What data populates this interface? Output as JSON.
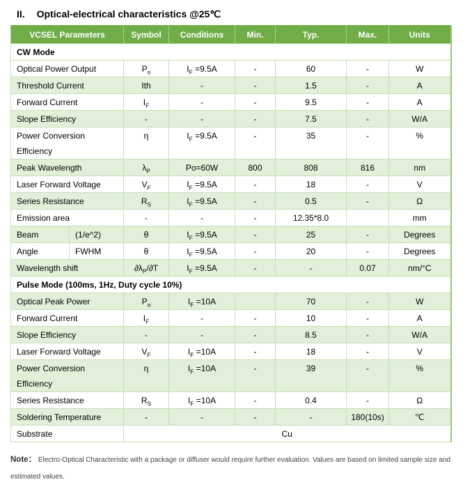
{
  "title": {
    "numeral": "II.",
    "text": "Optical-electrical characteristics @25℃"
  },
  "colors": {
    "header_bg": "#71ad47",
    "header_text": "#ffffff",
    "row_shade": "#e2efd9",
    "border": "#c5e0b4",
    "note_text": "#3f3f3f"
  },
  "table": {
    "type": "table",
    "columns": [
      {
        "label": "VCSEL Parameters"
      },
      {
        "label": "Symbol"
      },
      {
        "label": "Conditions"
      },
      {
        "label": "Min."
      },
      {
        "label": "Typ."
      },
      {
        "label": "Max."
      },
      {
        "label": "Units"
      }
    ],
    "rows": [
      {
        "kind": "section",
        "label": "CW Mode"
      },
      {
        "kind": "data",
        "shade": false,
        "param": "Optical Power Output",
        "symbol": [
          "P",
          {
            "sub": "o"
          }
        ],
        "cond": [
          "I",
          {
            "sub": "F"
          },
          " =9.5A"
        ],
        "min": "-",
        "typ": "60",
        "max": "-",
        "units": "W"
      },
      {
        "kind": "data",
        "shade": true,
        "param": "Threshold Current",
        "symbol": "Ith",
        "cond": "-",
        "min": "-",
        "typ": "1.5",
        "max": "-",
        "units": "A"
      },
      {
        "kind": "data",
        "shade": false,
        "param": "Forward Current",
        "symbol": [
          "I",
          {
            "sub": "F"
          }
        ],
        "cond": "-",
        "min": "-",
        "typ": "9.5",
        "max": "-",
        "units": "A"
      },
      {
        "kind": "data",
        "shade": true,
        "param": "Slope Efficiency",
        "symbol": "-",
        "cond": "-",
        "min": "-",
        "typ": "7.5",
        "max": "-",
        "units": "W/A"
      },
      {
        "kind": "data",
        "shade": false,
        "tall": true,
        "param": "Power Conversion Efficiency",
        "symbol": "η",
        "cond": [
          "I",
          {
            "sub": "F"
          },
          " =9.5A"
        ],
        "min": "-",
        "typ": "35",
        "max": "-",
        "units": "%"
      },
      {
        "kind": "data",
        "shade": true,
        "param": "Peak Wavelength",
        "symbol": [
          "λ",
          {
            "sub": "P"
          }
        ],
        "cond": "Po=60W",
        "min": "800",
        "typ": "808",
        "max": "816",
        "units": "nm"
      },
      {
        "kind": "data",
        "shade": false,
        "param": "Laser Forward Voltage",
        "symbol": [
          "V",
          {
            "sub": "F"
          }
        ],
        "cond": [
          "I",
          {
            "sub": "F"
          },
          " =9.5A"
        ],
        "min": "-",
        "typ": "18",
        "max": "-",
        "units": "V"
      },
      {
        "kind": "data",
        "shade": true,
        "param": "Series Resistance",
        "symbol": [
          "R",
          {
            "sub": "S"
          }
        ],
        "cond": [
          "I",
          {
            "sub": "F"
          },
          " =9.5A"
        ],
        "min": "-",
        "typ": "0.5",
        "max": "-",
        "units": "Ω"
      },
      {
        "kind": "data",
        "shade": false,
        "param": "Emission area",
        "symbol": "-",
        "cond": "-",
        "min": "-",
        "typ": "12.35*8.0",
        "max": "",
        "units": "mm"
      },
      {
        "kind": "data",
        "shade": true,
        "param": "Beam",
        "param2": "(1/e^2)",
        "symbol": "θ",
        "cond": [
          "I",
          {
            "sub": "F"
          },
          " =9.5A"
        ],
        "min": "-",
        "typ": "25",
        "max": "-",
        "units": "Degrees"
      },
      {
        "kind": "data",
        "shade": false,
        "param": "Angle",
        "param2": "FWHM",
        "symbol": "θ",
        "cond": [
          "I",
          {
            "sub": "F"
          },
          " =9.5A"
        ],
        "min": "-",
        "typ": "20",
        "max": "-",
        "units": "Degrees"
      },
      {
        "kind": "data",
        "shade": true,
        "param": "Wavelength shift",
        "symbol": [
          "∂λ",
          {
            "sub": "P"
          },
          "/∂T"
        ],
        "cond": [
          "I",
          {
            "sub": "F"
          },
          " =9.5A"
        ],
        "min": "-",
        "typ": "-",
        "max": "0.07",
        "units": "nm/°C"
      },
      {
        "kind": "section",
        "label": "Pulse Mode (100ms, 1Hz, Duty cycle 10%)"
      },
      {
        "kind": "data",
        "shade": true,
        "param": "Optical Peak Power",
        "symbol": [
          "P",
          {
            "sub": "o"
          }
        ],
        "cond": [
          "I",
          {
            "sub": "F"
          },
          " =10A"
        ],
        "min": "",
        "typ": "70",
        "max": "-",
        "units": "W"
      },
      {
        "kind": "data",
        "shade": false,
        "param": "Forward Current",
        "symbol": [
          "I",
          {
            "sub": "F"
          }
        ],
        "cond": "-",
        "min": "-",
        "typ": "10",
        "max": "-",
        "units": "A"
      },
      {
        "kind": "data",
        "shade": true,
        "param": "Slope Efficiency",
        "symbol": "-",
        "cond": "-",
        "min": "-",
        "typ": "8.5",
        "max": "-",
        "units": "W/A"
      },
      {
        "kind": "data",
        "shade": false,
        "param": "Laser Forward Voltage",
        "symbol": [
          "V",
          {
            "sub": "F"
          }
        ],
        "cond": [
          "I",
          {
            "sub": "F"
          },
          " =10A"
        ],
        "min": "-",
        "typ": "18",
        "max": "-",
        "units": "V"
      },
      {
        "kind": "data",
        "shade": true,
        "tall": true,
        "param": "Power Conversion Efficiency",
        "symbol": "η",
        "cond": [
          "I",
          {
            "sub": "F"
          },
          " =10A"
        ],
        "min": "-",
        "typ": "39",
        "max": "-",
        "units": "%"
      },
      {
        "kind": "data",
        "shade": false,
        "param": "Series Resistance",
        "symbol": [
          "R",
          {
            "sub": "S"
          }
        ],
        "cond": [
          "I",
          {
            "sub": "F"
          },
          " =10A"
        ],
        "min": "-",
        "typ": "0.4",
        "max": "-",
        "units": "Ω"
      },
      {
        "kind": "data",
        "shade": true,
        "param": "Soldering Temperature",
        "symbol": "-",
        "cond": "-",
        "min": "-",
        "typ": "-",
        "max": "180(10s)",
        "units": "℃"
      },
      {
        "kind": "substrate",
        "shade": false,
        "param": "Substrate",
        "value": "Cu"
      }
    ]
  },
  "note": {
    "label": "Note：",
    "line1": "Electro-Optical Characteristic with a package or diffuser would require further evaluation. Values are based on limited sample size and",
    "line2": "estimated values."
  }
}
